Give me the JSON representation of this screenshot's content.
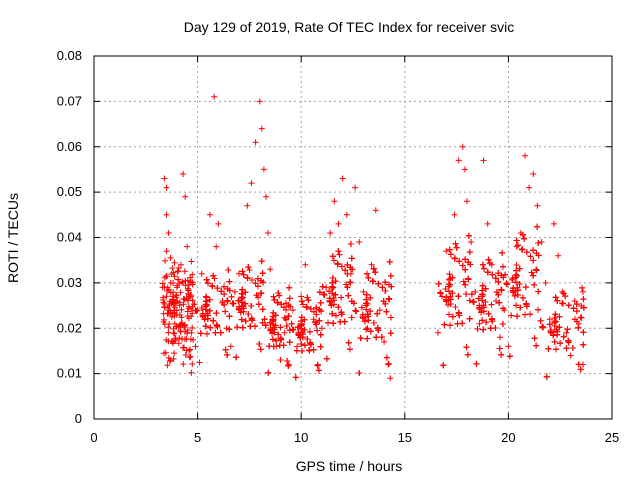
{
  "colors": {
    "series": "#ff0000",
    "grid": "#a0a0a0",
    "axis": "#000000",
    "background": "#ffffff"
  },
  "chart_data": {
    "type": "scatter",
    "title": "Day 129 of 2019, Rate Of TEC Index for receiver svic",
    "xlabel": "GPS time / hours",
    "ylabel": "ROTI / TECUs",
    "xlim": [
      0,
      25
    ],
    "ylim": [
      0,
      0.08
    ],
    "xticks": [
      0,
      5,
      10,
      15,
      20,
      25
    ],
    "xtick_labels": [
      "0",
      "5",
      "10",
      "15",
      "20",
      "25"
    ],
    "yticks": [
      0,
      0.01,
      0.02,
      0.03,
      0.04,
      0.05,
      0.06,
      0.07,
      0.08
    ],
    "ytick_labels": [
      "0",
      "0.01",
      "0.02",
      "0.03",
      "0.04",
      "0.05",
      "0.06",
      "0.07",
      "0.08"
    ],
    "grid": true,
    "marker": "plus",
    "series": [
      {
        "name": "ROTI",
        "color": "#ff0000",
        "points": [
          [
            3.4,
            0.053
          ],
          [
            3.5,
            0.051
          ],
          [
            3.5,
            0.045
          ],
          [
            3.6,
            0.041
          ],
          [
            3.5,
            0.037
          ],
          [
            3.7,
            0.03
          ],
          [
            3.6,
            0.024
          ],
          [
            3.8,
            0.017
          ],
          [
            3.9,
            0.021
          ],
          [
            4.0,
            0.029
          ],
          [
            4.2,
            0.034
          ],
          [
            4.3,
            0.054
          ],
          [
            4.4,
            0.049
          ],
          [
            4.5,
            0.038
          ],
          [
            4.6,
            0.027
          ],
          [
            4.7,
            0.019
          ],
          [
            4.9,
            0.016
          ],
          [
            5.0,
            0.024
          ],
          [
            5.2,
            0.032
          ],
          [
            5.4,
            0.027
          ],
          [
            5.6,
            0.045
          ],
          [
            5.8,
            0.071
          ],
          [
            5.9,
            0.038
          ],
          [
            6.0,
            0.043
          ],
          [
            6.2,
            0.026
          ],
          [
            6.4,
            0.02
          ],
          [
            6.6,
            0.016
          ],
          [
            6.8,
            0.028
          ],
          [
            7.0,
            0.032
          ],
          [
            7.2,
            0.025
          ],
          [
            7.4,
            0.047
          ],
          [
            7.6,
            0.052
          ],
          [
            7.8,
            0.061
          ],
          [
            8.0,
            0.07
          ],
          [
            8.1,
            0.064
          ],
          [
            8.2,
            0.055
          ],
          [
            8.3,
            0.049
          ],
          [
            8.4,
            0.041
          ],
          [
            8.5,
            0.033
          ],
          [
            8.6,
            0.022
          ],
          [
            8.8,
            0.016
          ],
          [
            9.0,
            0.013
          ],
          [
            9.2,
            0.019
          ],
          [
            9.4,
            0.012
          ],
          [
            9.6,
            0.024
          ],
          [
            9.8,
            0.016
          ],
          [
            10.0,
            0.027
          ],
          [
            10.2,
            0.034
          ],
          [
            10.4,
            0.015
          ],
          [
            10.6,
            0.022
          ],
          [
            10.8,
            0.012
          ],
          [
            11.0,
            0.02
          ],
          [
            11.2,
            0.029
          ],
          [
            11.4,
            0.041
          ],
          [
            11.6,
            0.048
          ],
          [
            11.8,
            0.043
          ],
          [
            12.0,
            0.053
          ],
          [
            12.2,
            0.045
          ],
          [
            12.4,
            0.032
          ],
          [
            12.6,
            0.051
          ],
          [
            12.8,
            0.039
          ],
          [
            13.0,
            0.028
          ],
          [
            13.2,
            0.02
          ],
          [
            13.4,
            0.034
          ],
          [
            13.6,
            0.046
          ],
          [
            13.8,
            0.024
          ],
          [
            14.0,
            0.017
          ],
          [
            14.2,
            0.012
          ],
          [
            14.3,
            0.009
          ],
          [
            16.6,
            0.019
          ],
          [
            16.8,
            0.027
          ],
          [
            17.0,
            0.037
          ],
          [
            17.2,
            0.031
          ],
          [
            17.4,
            0.045
          ],
          [
            17.6,
            0.057
          ],
          [
            17.8,
            0.06
          ],
          [
            17.9,
            0.055
          ],
          [
            18.0,
            0.048
          ],
          [
            18.2,
            0.039
          ],
          [
            18.4,
            0.028
          ],
          [
            18.6,
            0.021
          ],
          [
            18.8,
            0.057
          ],
          [
            19.0,
            0.043
          ],
          [
            19.2,
            0.034
          ],
          [
            19.4,
            0.026
          ],
          [
            19.6,
            0.018
          ],
          [
            19.8,
            0.024
          ],
          [
            20.0,
            0.016
          ],
          [
            20.2,
            0.031
          ],
          [
            20.4,
            0.038
          ],
          [
            20.6,
            0.041
          ],
          [
            20.8,
            0.058
          ],
          [
            21.0,
            0.051
          ],
          [
            21.2,
            0.054
          ],
          [
            21.4,
            0.047
          ],
          [
            21.6,
            0.039
          ],
          [
            21.8,
            0.03
          ],
          [
            22.0,
            0.022
          ],
          [
            22.2,
            0.043
          ],
          [
            22.4,
            0.036
          ],
          [
            22.6,
            0.028
          ],
          [
            22.8,
            0.019
          ],
          [
            23.0,
            0.014
          ],
          [
            23.2,
            0.026
          ],
          [
            23.4,
            0.021
          ],
          [
            23.6,
            0.028
          ],
          [
            23.6,
            0.012
          ]
        ]
      }
    ],
    "clusters": [
      {
        "x": [
          3.3,
          4.8
        ],
        "y": [
          0.008,
          0.036
        ]
      },
      {
        "x": [
          4.8,
          6.6
        ],
        "y": [
          0.009,
          0.034
        ]
      },
      {
        "x": [
          6.6,
          8.2
        ],
        "y": [
          0.01,
          0.036
        ]
      },
      {
        "x": [
          8.2,
          9.5
        ],
        "y": [
          0.007,
          0.03
        ]
      },
      {
        "x": [
          9.5,
          11.0
        ],
        "y": [
          0.006,
          0.029
        ]
      },
      {
        "x": [
          11.0,
          12.5
        ],
        "y": [
          0.009,
          0.04
        ]
      },
      {
        "x": [
          12.5,
          14.4
        ],
        "y": [
          0.006,
          0.036
        ]
      },
      {
        "x": [
          16.6,
          18.2
        ],
        "y": [
          0.007,
          0.042
        ]
      },
      {
        "x": [
          18.2,
          19.8
        ],
        "y": [
          0.008,
          0.038
        ]
      },
      {
        "x": [
          19.8,
          21.5
        ],
        "y": [
          0.009,
          0.044
        ]
      },
      {
        "x": [
          21.5,
          23.7
        ],
        "y": [
          0.006,
          0.03
        ]
      }
    ]
  }
}
